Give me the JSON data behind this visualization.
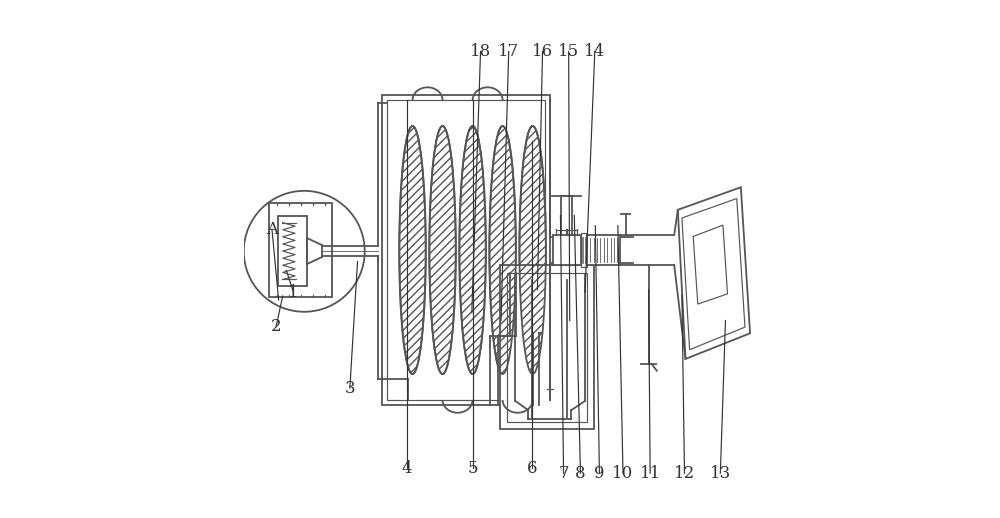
{
  "bg_color": "#ffffff",
  "lc": "#555555",
  "lw": 1.3,
  "lw2": 0.85,
  "fig_width": 10.0,
  "fig_height": 5.18,
  "label_fs": 12,
  "labels": {
    "1": {
      "t": [
        0.097,
        0.435
      ],
      "e": [
        0.083,
        0.478
      ]
    },
    "2": {
      "t": [
        0.063,
        0.368
      ],
      "e": [
        0.076,
        0.428
      ]
    },
    "3": {
      "t": [
        0.207,
        0.248
      ],
      "e": [
        0.222,
        0.495
      ]
    },
    "4": {
      "t": [
        0.318,
        0.092
      ],
      "e": [
        0.318,
        0.81
      ]
    },
    "5": {
      "t": [
        0.447,
        0.092
      ],
      "e": [
        0.447,
        0.81
      ]
    },
    "6": {
      "t": [
        0.562,
        0.092
      ],
      "e": [
        0.562,
        0.73
      ]
    },
    "7": {
      "t": [
        0.624,
        0.082
      ],
      "e": [
        0.618,
        0.585
      ]
    },
    "8": {
      "t": [
        0.657,
        0.082
      ],
      "e": [
        0.645,
        0.585
      ]
    },
    "9": {
      "t": [
        0.694,
        0.082
      ],
      "e": [
        0.686,
        0.565
      ]
    },
    "10": {
      "t": [
        0.74,
        0.082
      ],
      "e": [
        0.73,
        0.565
      ]
    },
    "11": {
      "t": [
        0.793,
        0.082
      ],
      "e": [
        0.79,
        0.44
      ]
    },
    "12": {
      "t": [
        0.86,
        0.082
      ],
      "e": [
        0.855,
        0.43
      ]
    },
    "13": {
      "t": [
        0.93,
        0.082
      ],
      "e": [
        0.94,
        0.38
      ]
    },
    "14": {
      "t": [
        0.685,
        0.905
      ],
      "e": [
        0.666,
        0.435
      ]
    },
    "15": {
      "t": [
        0.634,
        0.905
      ],
      "e": [
        0.636,
        0.38
      ]
    },
    "16": {
      "t": [
        0.583,
        0.905
      ],
      "e": [
        0.573,
        0.44
      ]
    },
    "17": {
      "t": [
        0.517,
        0.905
      ],
      "e": [
        0.502,
        0.38
      ]
    },
    "18": {
      "t": [
        0.462,
        0.905
      ],
      "e": [
        0.445,
        0.395
      ]
    },
    "A": {
      "t": [
        0.055,
        0.558
      ],
      "e": [
        0.068,
        0.42
      ]
    }
  }
}
